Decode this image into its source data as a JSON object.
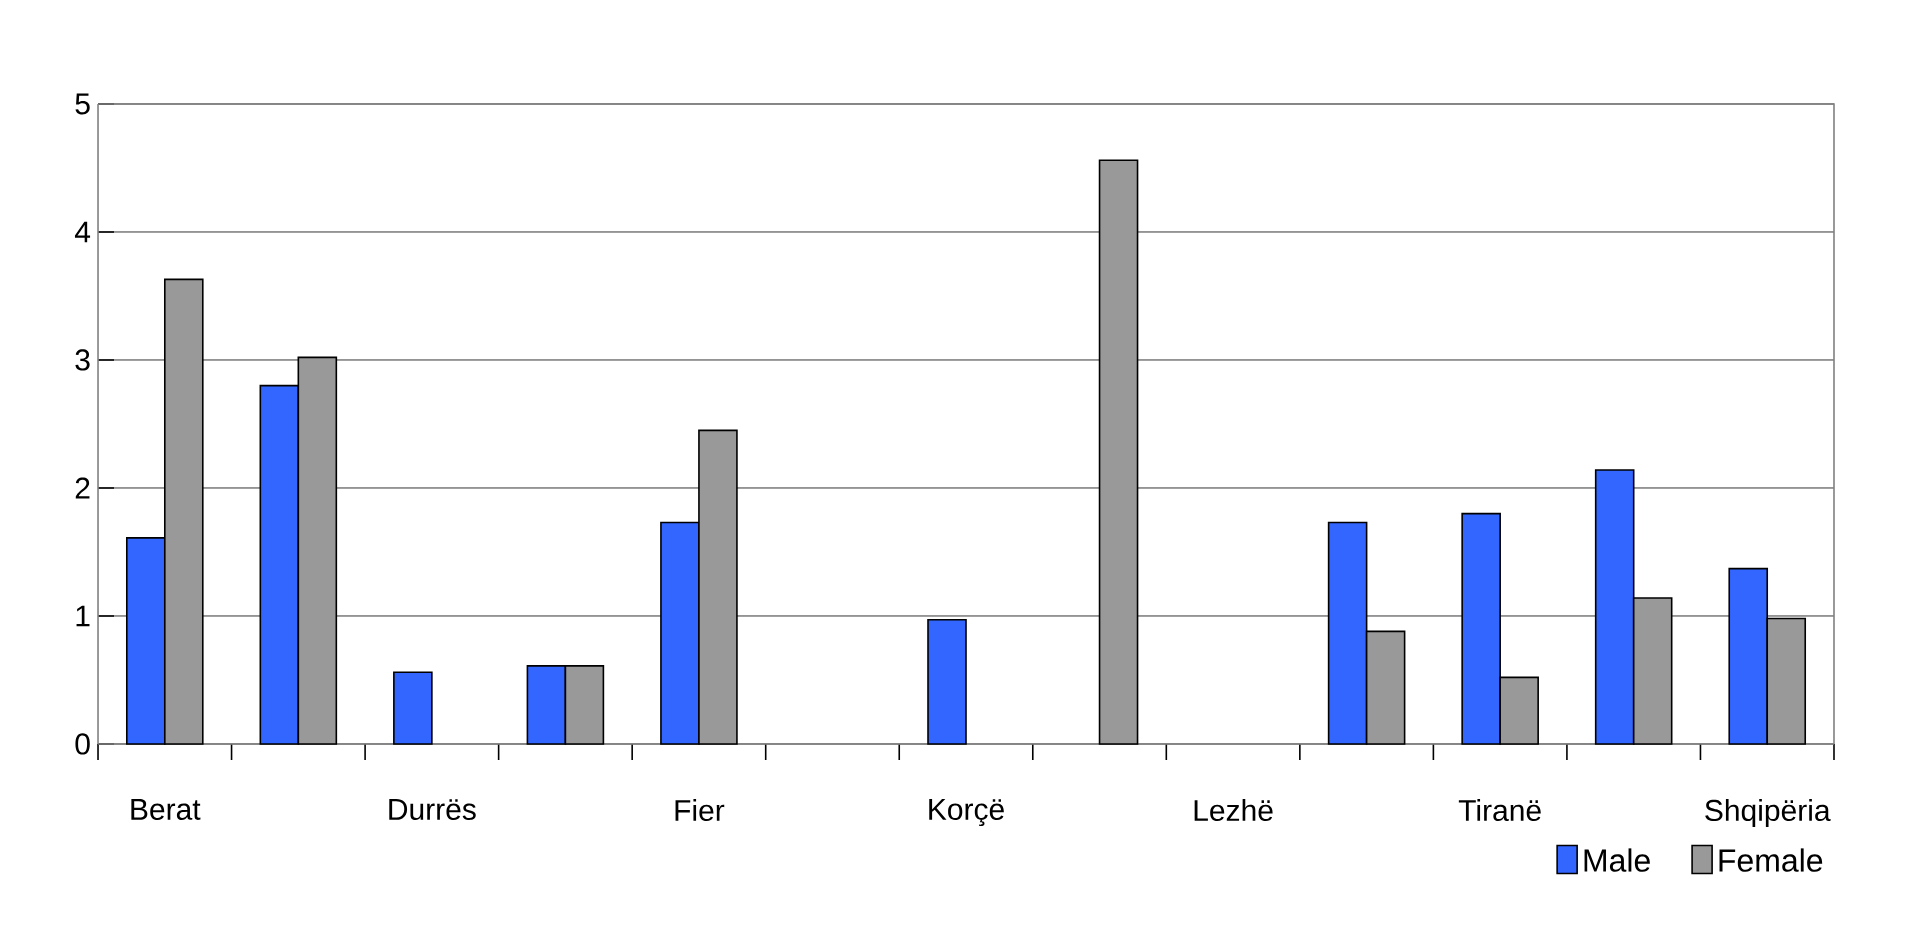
{
  "chart_data": {
    "type": "bar",
    "categories": [
      "Berat",
      null,
      "Durrës",
      null,
      "Fier",
      null,
      "Korçë",
      null,
      "Lezhë",
      null,
      "Tiranë",
      null,
      "Shqipëria"
    ],
    "series": [
      {
        "name": "Male",
        "color": "#3366ff",
        "values": [
          1.61,
          2.8,
          0.56,
          0.61,
          1.73,
          null,
          0.97,
          null,
          null,
          1.73,
          1.8,
          2.14,
          1.37
        ]
      },
      {
        "name": "Female",
        "color": "#999999",
        "values": [
          3.63,
          3.02,
          null,
          0.61,
          2.45,
          null,
          null,
          4.56,
          null,
          0.88,
          0.52,
          1.14,
          0.98
        ]
      }
    ],
    "ylim": [
      0,
      5
    ],
    "yticks": [
      0,
      1,
      2,
      3,
      4,
      5
    ],
    "grid": "y",
    "legend": "bottom right"
  }
}
